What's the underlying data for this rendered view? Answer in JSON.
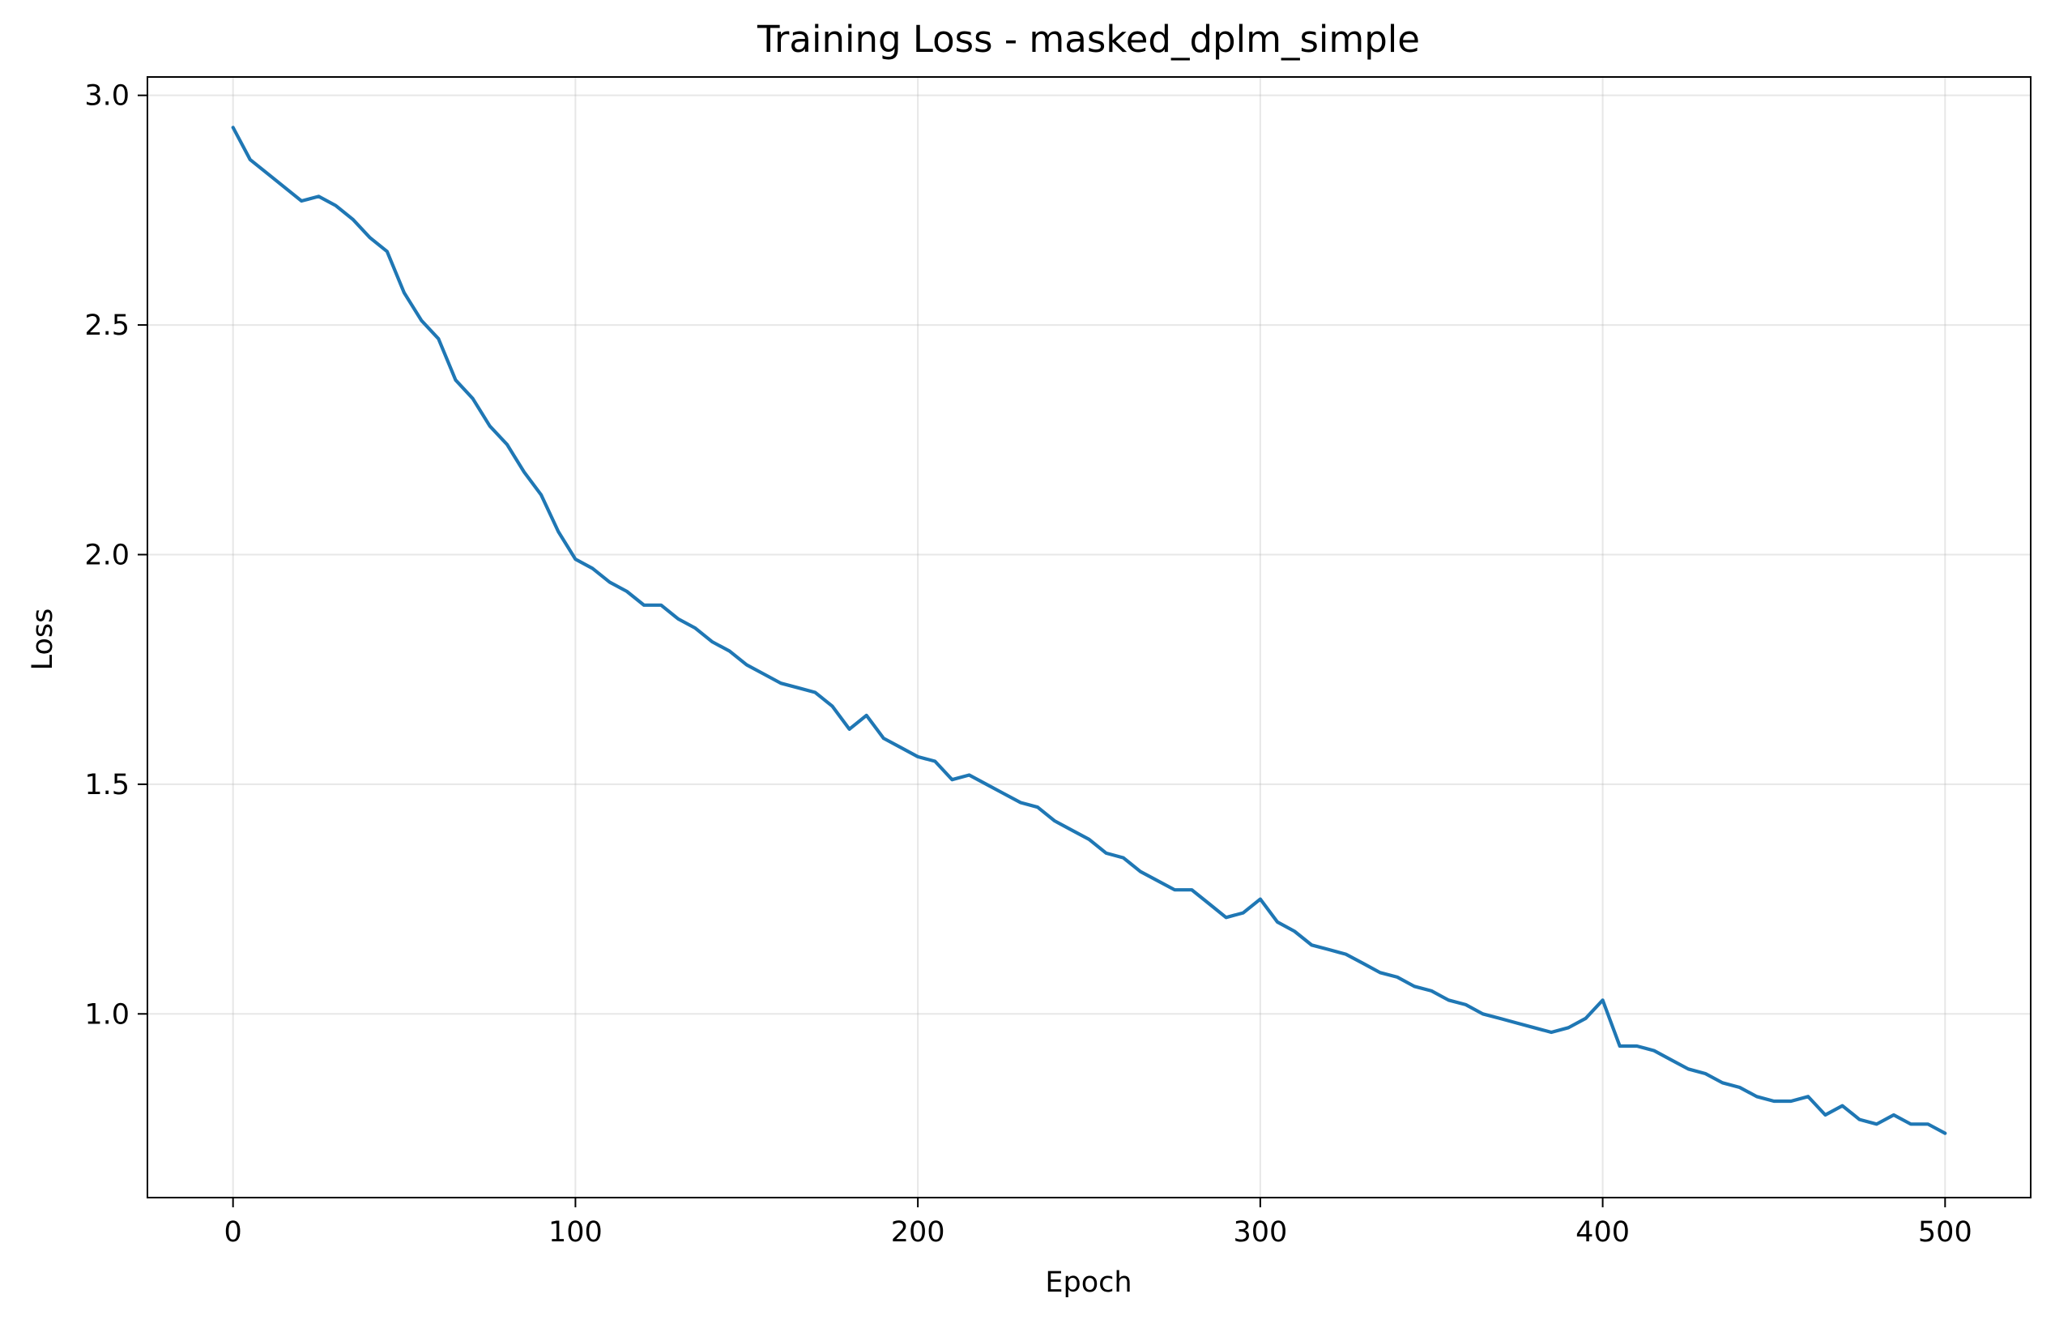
{
  "chart_data": {
    "type": "line",
    "title": "Training Loss - masked_dplm_simple",
    "xlabel": "Epoch",
    "ylabel": "Loss",
    "xlim": [
      -25,
      525
    ],
    "ylim": [
      0.6,
      3.04
    ],
    "xticks": [
      0,
      100,
      200,
      300,
      400,
      500
    ],
    "xtick_labels": [
      "0",
      "100",
      "200",
      "300",
      "400",
      "500"
    ],
    "yticks": [
      1.0,
      1.5,
      2.0,
      2.5,
      3.0
    ],
    "ytick_labels": [
      "1.0",
      "1.5",
      "2.0",
      "2.5",
      "3.0"
    ],
    "grid": true,
    "legend": "none",
    "series": [
      {
        "name": "Loss",
        "color": "#1f77b4",
        "x_start": 0,
        "x_step": 5,
        "values": [
          2.93,
          2.86,
          2.83,
          2.8,
          2.77,
          2.78,
          2.76,
          2.73,
          2.69,
          2.66,
          2.57,
          2.51,
          2.47,
          2.38,
          2.34,
          2.28,
          2.24,
          2.18,
          2.13,
          2.05,
          1.99,
          1.97,
          1.94,
          1.92,
          1.89,
          1.89,
          1.86,
          1.84,
          1.81,
          1.79,
          1.76,
          1.74,
          1.72,
          1.71,
          1.7,
          1.67,
          1.62,
          1.65,
          1.6,
          1.58,
          1.56,
          1.55,
          1.51,
          1.52,
          1.5,
          1.48,
          1.46,
          1.45,
          1.42,
          1.4,
          1.38,
          1.35,
          1.34,
          1.31,
          1.29,
          1.27,
          1.27,
          1.24,
          1.21,
          1.22,
          1.25,
          1.2,
          1.18,
          1.15,
          1.14,
          1.13,
          1.11,
          1.09,
          1.08,
          1.06,
          1.05,
          1.03,
          1.02,
          1.0,
          0.99,
          0.98,
          0.97,
          0.96,
          0.97,
          0.99,
          1.03,
          0.93,
          0.93,
          0.92,
          0.9,
          0.88,
          0.87,
          0.85,
          0.84,
          0.82,
          0.81,
          0.81,
          0.82,
          0.78,
          0.8,
          0.77,
          0.76,
          0.78,
          0.76,
          0.76,
          0.74
        ]
      }
    ]
  }
}
